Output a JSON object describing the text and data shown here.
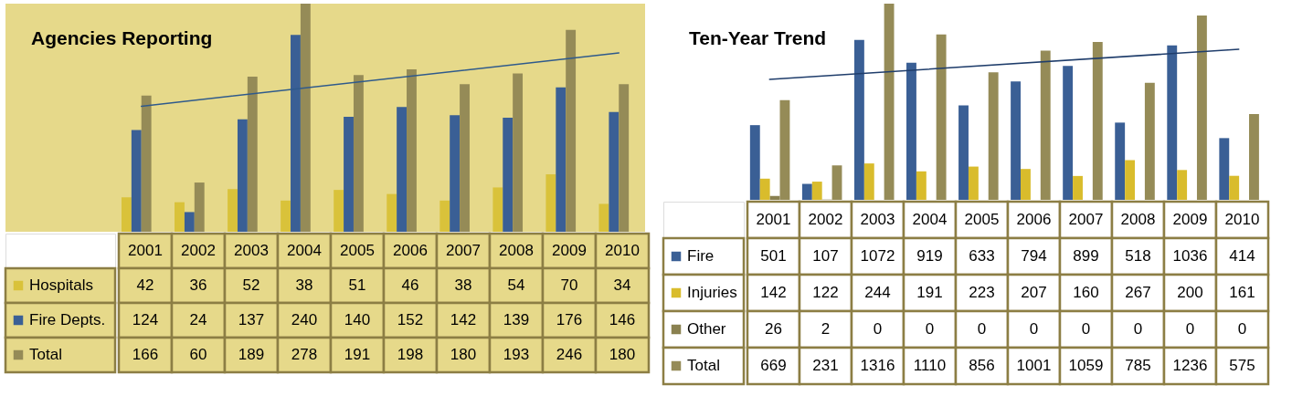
{
  "chart_data": [
    {
      "type": "bar",
      "title": "Agencies Reporting",
      "categories": [
        "2001",
        "2002",
        "2003",
        "2004",
        "2005",
        "2006",
        "2007",
        "2008",
        "2009",
        "2010"
      ],
      "legend": "bottom left",
      "series": [
        {
          "name": "Hospitals",
          "color": "#d9c23a",
          "values": [
            42,
            36,
            52,
            38,
            51,
            46,
            38,
            54,
            70,
            34
          ],
          "value_labels": [
            "42",
            "36",
            "52",
            "38",
            "51",
            "46",
            "38",
            "54",
            "70",
            "34"
          ]
        },
        {
          "name": "Fire Depts.",
          "color": "#3a5f95",
          "values": [
            124,
            24,
            137,
            240,
            140,
            152,
            142,
            139,
            176,
            146
          ],
          "value_labels": [
            "124",
            "24",
            "137",
            "240",
            "140",
            "152",
            "142",
            "139",
            "176",
            "146"
          ]
        },
        {
          "name": "Total",
          "color": "#958b57",
          "values": [
            166,
            60,
            189,
            278,
            191,
            198,
            180,
            193,
            246,
            180
          ],
          "value_labels": [
            "166",
            "60",
            "189",
            "278",
            "191",
            "198",
            "180",
            "193",
            "246",
            "180"
          ]
        },
        {
          "type": "line",
          "color": "#2f5a8c",
          "values": [
            153,
            null,
            null,
            null,
            null,
            null,
            null,
            null,
            null,
            218
          ]
        }
      ]
    },
    {
      "type": "bar",
      "title": "Ten-Year Trend",
      "categories": [
        "2001",
        "2002",
        "2003",
        "2004",
        "2005",
        "2006",
        "2007",
        "2008",
        "2009",
        "2010"
      ],
      "legend": "bottom left",
      "series": [
        {
          "name": "Fire",
          "color": "#3a5f95",
          "values": [
            501,
            107,
            1072,
            919,
            633,
            794,
            899,
            518,
            1036,
            414
          ],
          "value_labels": [
            "501",
            "107",
            "1072",
            "919",
            "633",
            "794",
            "899",
            "518",
            "1036",
            "414"
          ]
        },
        {
          "name": "Injuries",
          "color": "#d9bc2c",
          "values": [
            142,
            122,
            244,
            191,
            223,
            207,
            160,
            267,
            200,
            161
          ],
          "value_labels": [
            "142",
            "122",
            "244",
            "191",
            "223",
            "207",
            "160",
            "267",
            "200",
            "161"
          ]
        },
        {
          "name": "Other",
          "color": "#8a8150",
          "values": [
            26,
            2,
            0,
            0,
            0,
            0,
            0,
            0,
            0,
            0
          ],
          "value_labels": [
            "26",
            "2",
            "0",
            "0",
            "0",
            "0",
            "0",
            "0",
            "0",
            "0"
          ]
        },
        {
          "name": "Total",
          "color": "#958b57",
          "values": [
            669,
            231,
            1316,
            1110,
            856,
            1001,
            1059,
            785,
            1236,
            575
          ],
          "value_labels": [
            "669",
            "231",
            "1316",
            "1110",
            "856",
            "1001",
            "1059",
            "785",
            "1236",
            "575"
          ]
        },
        {
          "type": "line",
          "color": "#1f3d6b",
          "values": [
            808,
            null,
            null,
            null,
            null,
            null,
            null,
            null,
            null,
            1010
          ]
        }
      ]
    }
  ]
}
